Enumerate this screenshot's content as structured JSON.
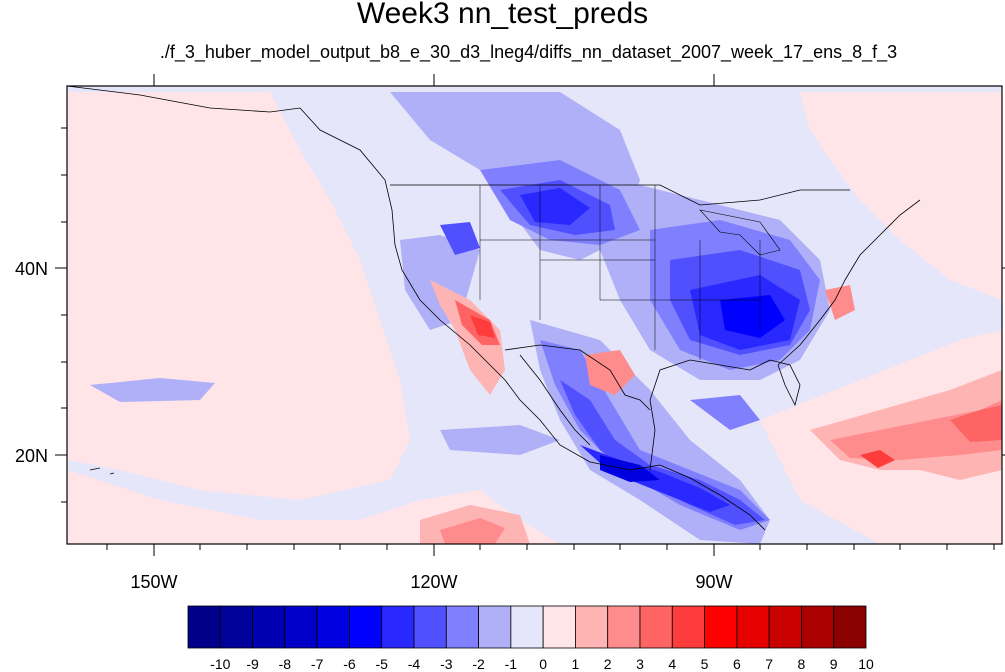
{
  "title": "Week3 nn_test_preds",
  "subtitle": "./f_3_huber_model_output_b8_e_30_d3_lneg4/diffs_nn_dataset_2007_week_17_ens_8_f_3",
  "map": {
    "lon_labels": [
      "150W",
      "120W",
      "90W"
    ],
    "lat_labels": [
      "40N",
      "20N"
    ],
    "background_color": "#e6e6fa"
  },
  "colorbar": {
    "labels": [
      "-10",
      "-9",
      "-8",
      "-7",
      "-6",
      "-5",
      "-4",
      "-3",
      "-2",
      "-1",
      "0",
      "1",
      "2",
      "3",
      "4",
      "5",
      "6",
      "7",
      "8",
      "9",
      "10"
    ],
    "colors": [
      "#00008b",
      "#00009a",
      "#0000b0",
      "#0000c8",
      "#0000e0",
      "#0000ff",
      "#2828ff",
      "#5050ff",
      "#8080ff",
      "#b0b0f8",
      "#e6e6fa",
      "#ffe4e8",
      "#ffb4b4",
      "#ff8c8c",
      "#ff6464",
      "#ff3c3c",
      "#ff0000",
      "#e60000",
      "#c80000",
      "#aa0000",
      "#8b0000"
    ]
  }
}
